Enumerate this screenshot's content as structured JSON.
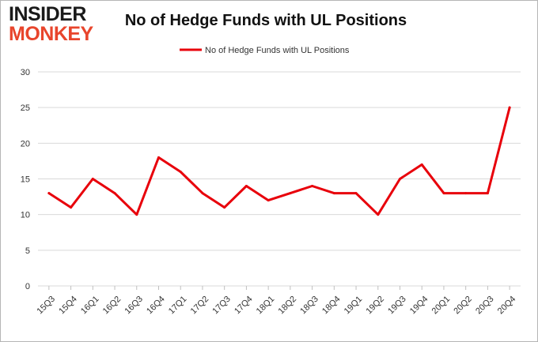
{
  "brand": {
    "logo_top": "INSIDER",
    "logo_bottom": "MONKEY"
  },
  "colors": {
    "line": "#e8000b",
    "grid": "#d9d9d9",
    "axis_text": "#333333",
    "logo_accent": "#e8452c"
  },
  "chart_data": {
    "type": "line",
    "title": "No of Hedge Funds with UL Positions",
    "xlabel": "",
    "ylabel": "",
    "categories": [
      "15Q3",
      "15Q4",
      "16Q1",
      "16Q2",
      "16Q3",
      "16Q4",
      "17Q1",
      "17Q2",
      "17Q3",
      "17Q4",
      "18Q1",
      "18Q2",
      "18Q3",
      "18Q4",
      "19Q1",
      "19Q2",
      "19Q3",
      "19Q4",
      "20Q1",
      "20Q2",
      "20Q3",
      "20Q4"
    ],
    "series": [
      {
        "name": "No of Hedge Funds with UL Positions",
        "values": [
          13,
          11,
          15,
          13,
          10,
          18,
          16,
          13,
          11,
          14,
          12,
          13,
          14,
          13,
          13,
          10,
          15,
          17,
          13,
          13,
          13,
          25
        ]
      }
    ],
    "ylim": [
      0,
      30
    ],
    "yticks": [
      0,
      5,
      10,
      15,
      20,
      25,
      30
    ],
    "grid": true,
    "legend": "top-center"
  }
}
